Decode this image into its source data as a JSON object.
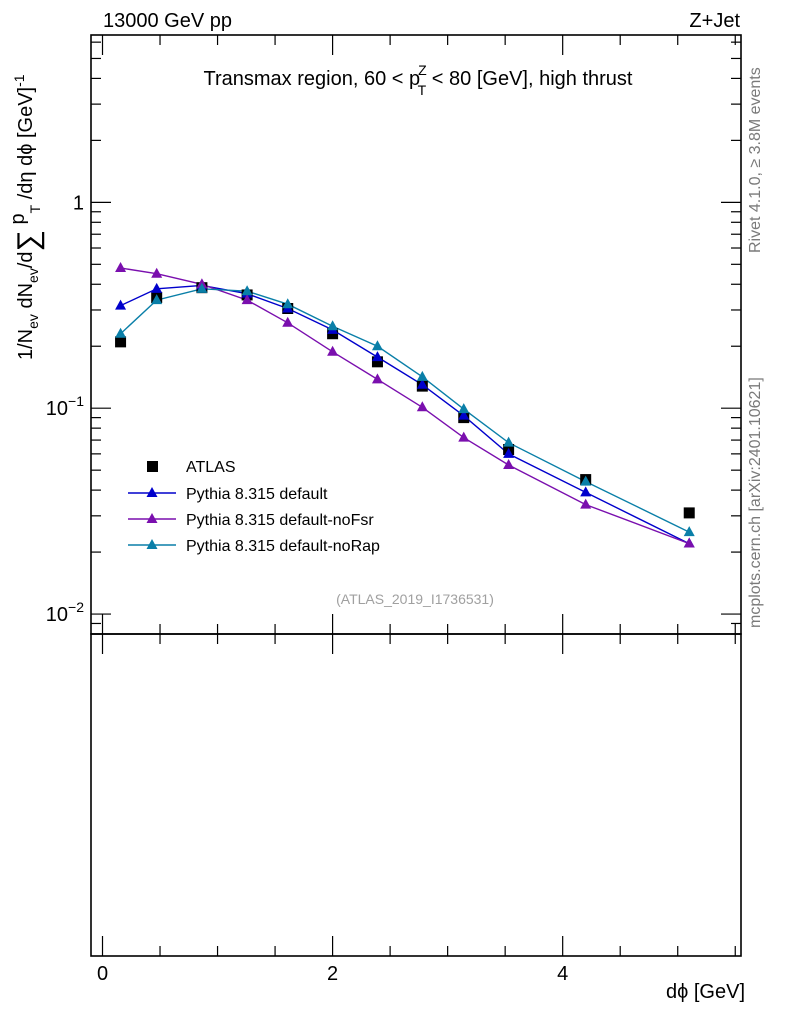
{
  "header": {
    "left": "13000 GeV pp",
    "right": "Z+Jet"
  },
  "side_labels": {
    "rivet": "Rivet 4.1.0, ≥ 3.8M events",
    "mcplots": "mcplots.cern.ch [arXiv:2401.10621]"
  },
  "watermark": "(ATLAS_2019_I1736531)",
  "chart_data": {
    "type": "line",
    "title": "Transmax region, 60 < p_T^Z < 80 [GeV], high thrust",
    "title_parts": {
      "before": "Transmax region, 60 < p",
      "sup": "Z",
      "sub": "T",
      "after": " < 80 [GeV], high thrust"
    },
    "xlabel": "dϕ [GeV]",
    "ylabel": "1/N_ev dN_ev/d∑ p_T /dη dϕ [GeV]^-1",
    "ylabel_parts": {
      "a": "1/N",
      "a_sub": "ev",
      "b": " dN",
      "b_sub": "ev",
      "c": "/d",
      "sum": "∑",
      "d": " p",
      "d_sub": "T",
      "e": " /dη dϕ  [GeV]",
      "e_sup": "-1"
    },
    "xlim": [
      -0.1,
      5.55
    ],
    "ylim": [
      0.008,
      6.5
    ],
    "yscale": "log",
    "x_ticks": [
      0,
      2,
      4
    ],
    "x_tick_labels": [
      "0",
      "2",
      "4"
    ],
    "y_ticks": [
      {
        "value": 0.01,
        "base": "10",
        "exp": "−2"
      },
      {
        "value": 0.1,
        "base": "10",
        "exp": "−1"
      },
      {
        "value": 1,
        "base": "1",
        "exp": ""
      }
    ],
    "series": [
      {
        "name": "ATLAS",
        "marker": "square",
        "color": "#000000",
        "x": [
          0.157,
          0.471,
          0.864,
          1.257,
          1.61,
          2.0,
          2.39,
          2.78,
          3.14,
          3.53,
          4.2,
          5.1
        ],
        "y": [
          0.21,
          0.345,
          0.385,
          0.355,
          0.305,
          0.23,
          0.168,
          0.128,
          0.09,
          0.063,
          0.045,
          0.031
        ]
      },
      {
        "name": "Pythia 8.315 default",
        "marker": "triangle",
        "color": "#0000cc",
        "x": [
          0.157,
          0.471,
          0.864,
          1.257,
          1.61,
          2.0,
          2.39,
          2.78,
          3.14,
          3.53,
          4.2,
          5.1
        ],
        "y": [
          0.315,
          0.38,
          0.395,
          0.36,
          0.305,
          0.24,
          0.177,
          0.13,
          0.092,
          0.06,
          0.039,
          0.022
        ]
      },
      {
        "name": "Pythia 8.315 default-noFsr",
        "marker": "triangle",
        "color": "#7a0fae",
        "x": [
          0.157,
          0.471,
          0.864,
          1.257,
          1.61,
          2.0,
          2.39,
          2.78,
          3.14,
          3.53,
          4.2,
          5.1
        ],
        "y": [
          0.48,
          0.45,
          0.4,
          0.335,
          0.26,
          0.188,
          0.138,
          0.101,
          0.072,
          0.053,
          0.034,
          0.022
        ]
      },
      {
        "name": "Pythia 8.315 default-noRap",
        "marker": "triangle",
        "color": "#0a7fa8",
        "x": [
          0.157,
          0.471,
          0.864,
          1.257,
          1.61,
          2.0,
          2.39,
          2.78,
          3.14,
          3.53,
          4.2,
          5.1
        ],
        "y": [
          0.23,
          0.335,
          0.38,
          0.37,
          0.32,
          0.25,
          0.2,
          0.142,
          0.099,
          0.068,
          0.044,
          0.025
        ]
      }
    ]
  }
}
